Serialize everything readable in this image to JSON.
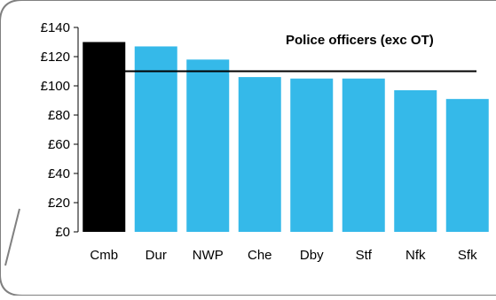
{
  "chart_data": {
    "type": "bar",
    "title": "Police officers (exc OT)",
    "categories": [
      "Cmb",
      "Dur",
      "NWP",
      "Che",
      "Dby",
      "Stf",
      "Nfk",
      "Sfk"
    ],
    "values": [
      130,
      127,
      118,
      106,
      105,
      105,
      97,
      91
    ],
    "reference_line": 110,
    "ylim": [
      0,
      140
    ],
    "y_ticks": [
      "£0",
      "£20",
      "£40",
      "£60",
      "£80",
      "£100",
      "£120",
      "£140"
    ],
    "y_tick_values": [
      0,
      20,
      40,
      60,
      80,
      100,
      120,
      140
    ],
    "xlabel": "",
    "ylabel": "",
    "grid": false,
    "legend": "none",
    "colors": {
      "highlight_bar": "#000000",
      "bar": "#35B9E9",
      "reference_line": "#000000",
      "frame": "#808080"
    }
  }
}
